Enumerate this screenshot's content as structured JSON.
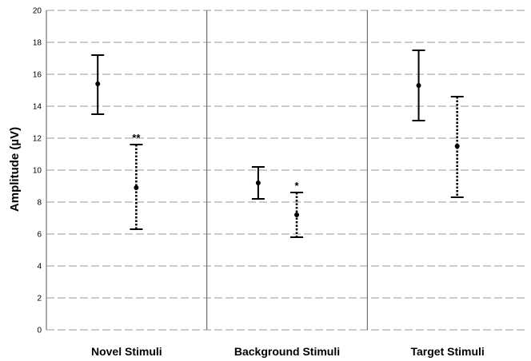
{
  "chart_data": {
    "type": "errorbar",
    "ylabel": "Amplitude (µV)",
    "ylim": [
      0,
      20
    ],
    "yticks": [
      0,
      2,
      4,
      6,
      8,
      10,
      12,
      14,
      16,
      18,
      20
    ],
    "grid": true,
    "categories": [
      "Novel Stimuli",
      "Background Stimuli",
      "Target Stimuli"
    ],
    "series": [
      {
        "line_style": "solid",
        "points": [
          {
            "category": "Novel Stimuli",
            "mean": 15.4,
            "lower": 13.5,
            "upper": 17.2,
            "annotation": ""
          },
          {
            "category": "Background Stimuli",
            "mean": 9.2,
            "lower": 8.2,
            "upper": 10.2,
            "annotation": ""
          },
          {
            "category": "Target Stimuli",
            "mean": 15.3,
            "lower": 13.1,
            "upper": 17.5,
            "annotation": ""
          }
        ]
      },
      {
        "line_style": "dotted",
        "points": [
          {
            "category": "Novel Stimuli",
            "mean": 8.9,
            "lower": 6.3,
            "upper": 11.6,
            "annotation": "**"
          },
          {
            "category": "Background Stimuli",
            "mean": 7.2,
            "lower": 5.8,
            "upper": 8.6,
            "annotation": "*"
          },
          {
            "category": "Target Stimuli",
            "mean": 11.5,
            "lower": 8.3,
            "upper": 14.6,
            "annotation": ""
          }
        ]
      }
    ]
  }
}
